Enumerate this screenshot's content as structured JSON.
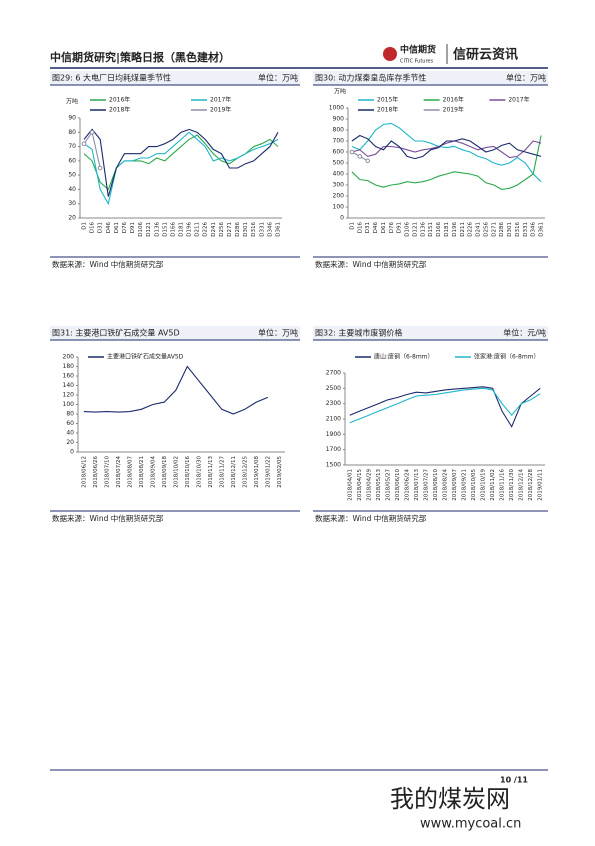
{
  "header": {
    "title": "中信期货研究|策略日报（黑色建材）",
    "logo_cn": "中信期货",
    "logo_en": "CITIC Futures",
    "brand": "信研云资讯"
  },
  "chart_data": [
    {
      "type": "line",
      "title": "图29: 6 大电厂日均耗煤量季节性",
      "unit": "单位：万吨",
      "y_unit": "万吨",
      "source": "数据来源：Wind  中信期货研究部",
      "categories": [
        "D1",
        "D16",
        "D31",
        "D46",
        "D61",
        "D76",
        "D91",
        "D106",
        "D121",
        "D136",
        "D151",
        "D166",
        "D181",
        "D196",
        "D211",
        "D226",
        "D241",
        "D256",
        "D271",
        "D286",
        "D301",
        "D316",
        "D331",
        "D346",
        "D361"
      ],
      "ylim": [
        20,
        90
      ],
      "yticks": [
        20,
        30,
        40,
        50,
        60,
        70,
        80,
        90
      ],
      "series": [
        {
          "name": "2016年",
          "color": "#2aa84a",
          "values": [
            65,
            60,
            45,
            40,
            55,
            60,
            60,
            60,
            58,
            62,
            60,
            65,
            70,
            75,
            78,
            72,
            65,
            60,
            58,
            62,
            65,
            70,
            72,
            75,
            70
          ]
        },
        {
          "name": "2017年",
          "color": "#1fb5c9",
          "values": [
            72,
            68,
            40,
            30,
            55,
            60,
            60,
            62,
            62,
            65,
            65,
            70,
            75,
            80,
            75,
            70,
            60,
            62,
            60,
            62,
            65,
            68,
            70,
            72,
            75
          ]
        },
        {
          "name": "2018年",
          "color": "#1b2a6b",
          "values": [
            75,
            82,
            75,
            35,
            55,
            65,
            65,
            65,
            70,
            70,
            72,
            75,
            80,
            82,
            80,
            75,
            68,
            65,
            55,
            55,
            58,
            60,
            65,
            70,
            80
          ]
        },
        {
          "name": "2019年",
          "color": "#8c8ca8",
          "markers": true,
          "values": [
            72,
            80,
            55,
            null,
            null,
            null,
            null,
            null,
            null,
            null,
            null,
            null,
            null,
            null,
            null,
            null,
            null,
            null,
            null,
            null,
            null,
            null,
            null,
            null,
            null
          ]
        }
      ]
    },
    {
      "type": "line",
      "title": "图30: 动力煤秦皇岛库存季节性",
      "unit": "单位：万吨",
      "y_unit": "万吨",
      "source": "数据来源：Wind  中信期货研究部",
      "categories": [
        "D1",
        "D16",
        "D31",
        "D46",
        "D61",
        "D76",
        "D91",
        "D106",
        "D121",
        "D136",
        "D151",
        "D166",
        "D181",
        "D196",
        "D211",
        "D226",
        "D241",
        "D256",
        "D271",
        "D286",
        "D301",
        "D316",
        "D331",
        "D346",
        "D361"
      ],
      "ylim": [
        0,
        1000
      ],
      "yticks": [
        0,
        100,
        200,
        300,
        400,
        500,
        600,
        700,
        800,
        900,
        1000
      ],
      "series": [
        {
          "name": "2015年",
          "color": "#1fb5c9",
          "values": [
            650,
            620,
            700,
            800,
            850,
            860,
            820,
            760,
            700,
            700,
            680,
            650,
            640,
            650,
            620,
            600,
            560,
            540,
            500,
            480,
            500,
            550,
            500,
            400,
            330
          ]
        },
        {
          "name": "2016年",
          "color": "#2aa84a",
          "values": [
            420,
            350,
            340,
            300,
            280,
            300,
            310,
            330,
            320,
            330,
            350,
            380,
            400,
            420,
            410,
            400,
            380,
            320,
            300,
            260,
            270,
            300,
            350,
            400,
            750
          ]
        },
        {
          "name": "2017年",
          "color": "#7a4f9a",
          "values": [
            600,
            620,
            560,
            580,
            650,
            650,
            640,
            620,
            600,
            620,
            630,
            650,
            680,
            700,
            680,
            650,
            620,
            640,
            650,
            600,
            550,
            560,
            620,
            700,
            680
          ]
        },
        {
          "name": "2018年",
          "color": "#1b2a6b",
          "values": [
            700,
            750,
            720,
            650,
            620,
            700,
            650,
            560,
            540,
            560,
            620,
            640,
            700,
            700,
            720,
            700,
            650,
            600,
            620,
            660,
            680,
            620,
            600,
            580,
            560
          ]
        },
        {
          "name": "2019年",
          "color": "#8c8ca8",
          "markers": true,
          "values": [
            600,
            560,
            520,
            null,
            null,
            null,
            null,
            null,
            null,
            null,
            null,
            null,
            null,
            null,
            null,
            null,
            null,
            null,
            null,
            null,
            null,
            null,
            null,
            null,
            null
          ]
        }
      ]
    },
    {
      "type": "line",
      "title": "图31: 主要港口铁矿石成交量 AV5D",
      "unit": "单位：万吨",
      "source": "数据来源：Wind  中信期货研究部",
      "categories": [
        "2018/06/12",
        "2018/06/26",
        "2018/07/10",
        "2018/07/24",
        "2018/08/07",
        "2018/08/21",
        "2018/09/04",
        "2018/09/18",
        "2018/10/02",
        "2018/10/16",
        "2018/10/30",
        "2018/11/13",
        "2018/11/27",
        "2018/12/11",
        "2018/12/25",
        "2019/01/08",
        "2019/01/22",
        "2019/02/05"
      ],
      "ylim": [
        0,
        200
      ],
      "yticks": [
        0,
        20,
        40,
        60,
        80,
        100,
        120,
        140,
        160,
        180,
        200
      ],
      "series": [
        {
          "name": "主要港口铁矿石成交量AV5D",
          "color": "#1b2a6b",
          "values": [
            85,
            84,
            85,
            84,
            85,
            90,
            100,
            105,
            130,
            180,
            150,
            120,
            90,
            80,
            90,
            105,
            115,
            null
          ]
        }
      ]
    },
    {
      "type": "line",
      "title": "图32: 主要城市废钢价格",
      "unit": "单位：元/吨",
      "source": "数据来源：Wind  中信期货研究部",
      "categories": [
        "2018/04/01",
        "2018/04/15",
        "2018/04/29",
        "2018/05/13",
        "2018/05/27",
        "2018/06/10",
        "2018/06/24",
        "2018/07/13",
        "2018/07/27",
        "2018/08/10",
        "2018/08/24",
        "2018/09/07",
        "2018/09/21",
        "2018/10/05",
        "2018/10/19",
        "2018/11/02",
        "2018/11/16",
        "2018/11/30",
        "2018/12/14",
        "2018/12/28",
        "2019/01/11"
      ],
      "ylim": [
        1500,
        2700
      ],
      "yticks": [
        1500,
        1700,
        1900,
        2100,
        2300,
        2500,
        2700
      ],
      "series": [
        {
          "name": "唐山:废钢（6-8mm）",
          "color": "#1b2a6b",
          "values": [
            2150,
            2200,
            2250,
            2300,
            2350,
            2380,
            2420,
            2450,
            2440,
            2460,
            2480,
            2490,
            2500,
            2510,
            2520,
            2500,
            2200,
            2000,
            2300,
            2400,
            2500
          ]
        },
        {
          "name": "张家港:废钢（6-8mm）",
          "color": "#1fb5c9",
          "values": [
            2050,
            2100,
            2150,
            2200,
            2250,
            2300,
            2350,
            2400,
            2410,
            2420,
            2440,
            2460,
            2480,
            2490,
            2500,
            2480,
            2300,
            2150,
            2300,
            2350,
            2430
          ]
        }
      ]
    }
  ],
  "footer": {
    "page": "10 /11",
    "watermark": "我的煤炭网",
    "url": "www.mycoal.cn"
  }
}
